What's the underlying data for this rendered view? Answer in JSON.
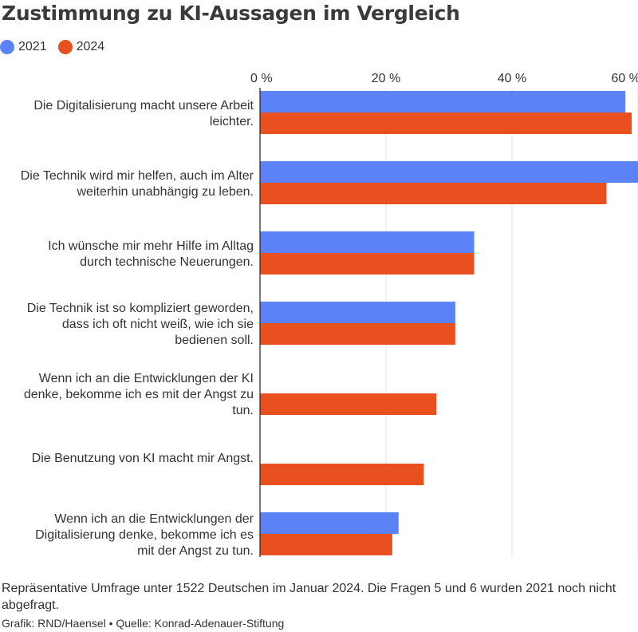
{
  "title": "Zustimmung zu KI-Aussagen im Vergleich",
  "legend": [
    {
      "label": "2021",
      "color": "#5b82f6"
    },
    {
      "label": "2024",
      "color": "#e8501f"
    }
  ],
  "note": "Repräsentative Umfrage unter 1522 Deutschen im Januar 2024. Die Fragen 5 und 6 wurden 2021 noch nicht abgefragt.",
  "credits": "Grafik: RND/Haensel • Quelle: Konrad-Adenauer-Stiftung",
  "chart_data": {
    "type": "bar",
    "orientation": "horizontal",
    "grid": true,
    "legend_position": "top-left",
    "xlim": [
      0,
      60
    ],
    "x_ticks": [
      0,
      20,
      40,
      60
    ],
    "x_tick_labels": [
      "0 %",
      "20 %",
      "40 %",
      "60 %"
    ],
    "categories": [
      [
        "Die Digitalisierung macht unsere Arbeit",
        "leichter."
      ],
      [
        "Die Technik wird mir helfen, auch im Alter",
        "weiterhin unabhängig zu leben."
      ],
      [
        "Ich wünsche mir mehr Hilfe im Alltag",
        "durch technische Neuerungen."
      ],
      [
        "Die Technik ist so kompliziert geworden,",
        "dass ich oft nicht weiß, wie ich sie",
        "bedienen soll."
      ],
      [
        "Wenn ich an die Entwicklungen der KI",
        "denke, bekomme ich es mit der Angst zu",
        "tun."
      ],
      [
        "Die Benutzung von KI macht mir Angst."
      ],
      [
        "Wenn ich an die Entwicklungen der",
        "Digitalisierung denke, bekomme ich es",
        "mit der Angst zu tun."
      ]
    ],
    "series": [
      {
        "name": "2021",
        "color": "#5b82f6",
        "values": [
          58,
          60,
          34,
          31,
          null,
          null,
          22
        ]
      },
      {
        "name": "2024",
        "color": "#e8501f",
        "values": [
          59,
          55,
          34,
          31,
          28,
          26,
          21
        ]
      }
    ]
  }
}
